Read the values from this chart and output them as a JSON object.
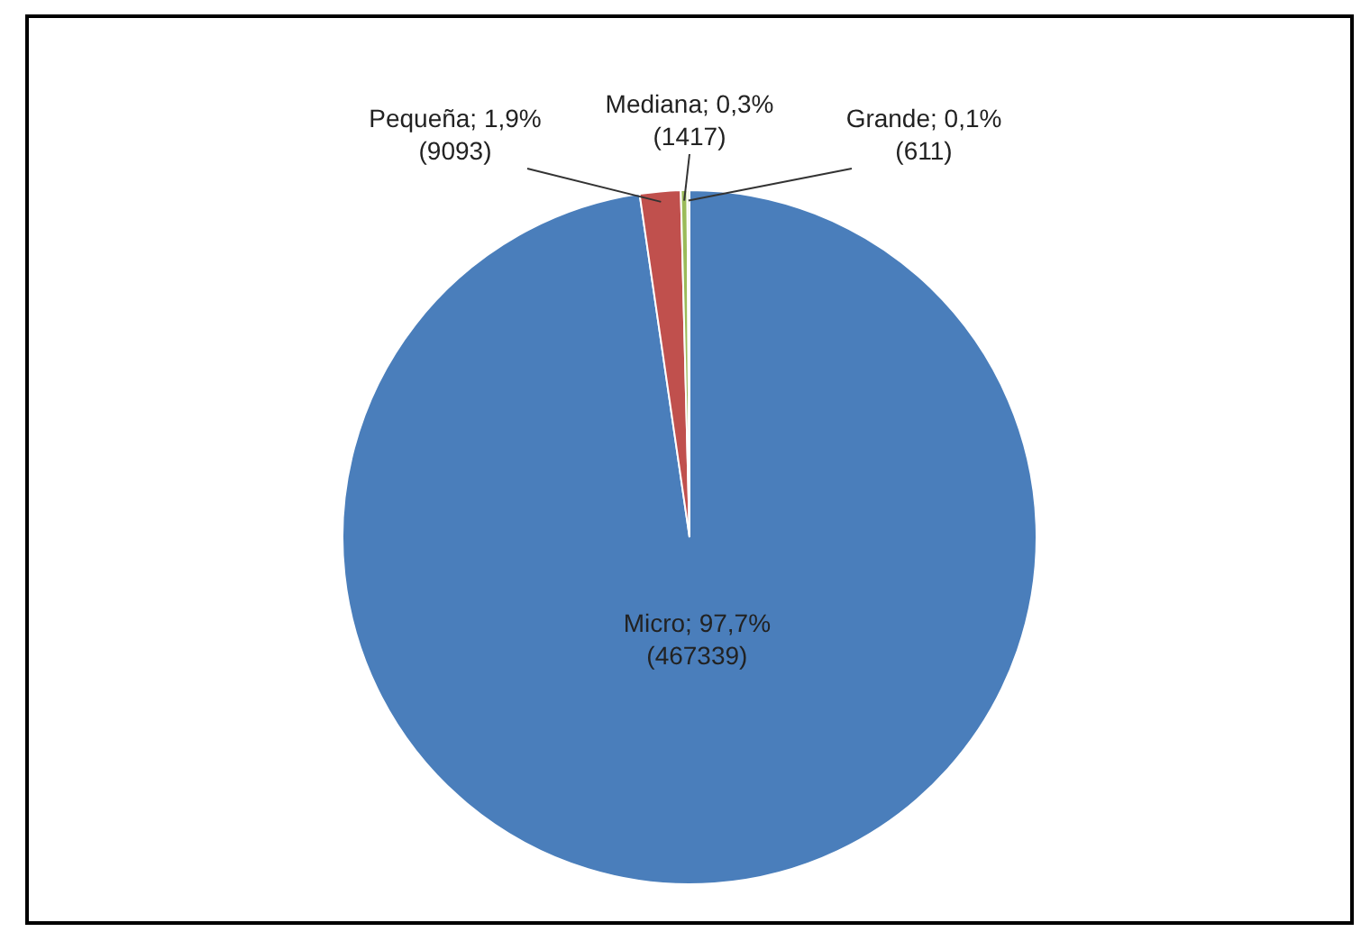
{
  "chart_data": {
    "type": "pie",
    "categories": [
      "Micro",
      "Pequeña",
      "Mediana",
      "Grande"
    ],
    "values": [
      97.7,
      1.9,
      0.3,
      0.1
    ],
    "value_labels": [
      "97,7%\n(467339)",
      "1,9%\n(9093)",
      "0,3%\n(1417)",
      "0,1%\n(611)"
    ],
    "colors": [
      "#4a7ebb",
      "#c0504d",
      "#9bbb59",
      "#d7e4a8"
    ],
    "legend": false
  }
}
